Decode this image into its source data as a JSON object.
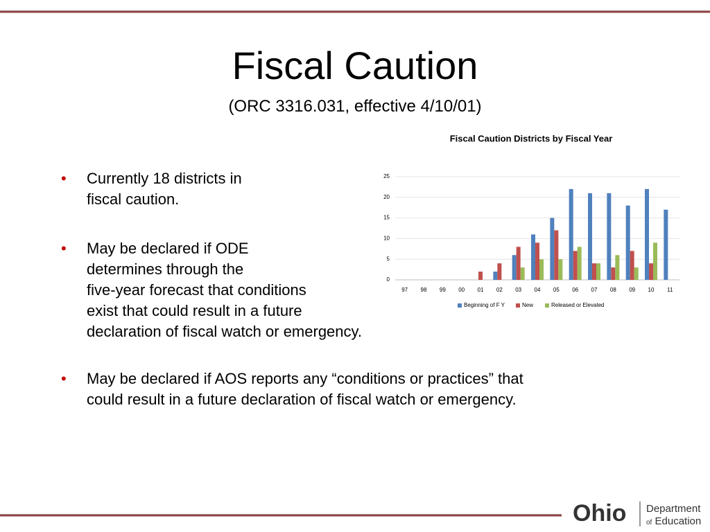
{
  "slide": {
    "title": "Fiscal Caution",
    "subtitle": "(ORC 3316.031, effective 4/10/01)",
    "bullets": [
      {
        "lines": [
          "Currently 18 districts in",
          "fiscal caution."
        ]
      },
      {
        "lines": [
          "May be declared if ODE",
          "determines through the",
          "five-year forecast that conditions",
          "exist that could result in a future",
          "declaration of fiscal watch or emergency."
        ]
      },
      {
        "lines": [
          "May be declared if AOS reports any “conditions or practices” that",
          "could result in a future declaration of fiscal watch or emergency."
        ]
      }
    ],
    "logo": {
      "ohio": "Ohio",
      "department": "Department",
      "of": "of",
      "education": "Education"
    }
  },
  "chart_data": {
    "type": "bar",
    "title": "Fiscal Caution Districts by Fiscal Year",
    "categories": [
      "97",
      "98",
      "99",
      "00",
      "01",
      "02",
      "03",
      "04",
      "05",
      "06",
      "07",
      "08",
      "09",
      "10",
      "11"
    ],
    "series": [
      {
        "name": "Beginning of F Y",
        "color": "#4f81bd",
        "values": [
          0,
          0,
          0,
          0,
          0,
          2,
          6,
          11,
          15,
          22,
          21,
          21,
          18,
          22,
          17
        ]
      },
      {
        "name": "New",
        "color": "#c0504d",
        "values": [
          0,
          0,
          0,
          0,
          2,
          4,
          8,
          9,
          12,
          7,
          4,
          3,
          7,
          4,
          0
        ]
      },
      {
        "name": "Released or Elevated",
        "color": "#9bbb59",
        "values": [
          0,
          0,
          0,
          0,
          0,
          0,
          3,
          5,
          5,
          8,
          4,
          6,
          3,
          9,
          0
        ]
      }
    ],
    "ylim": [
      0,
      25
    ],
    "yticks": [
      0,
      5,
      10,
      15,
      20,
      25
    ],
    "grid": true,
    "legend": "bottom"
  }
}
